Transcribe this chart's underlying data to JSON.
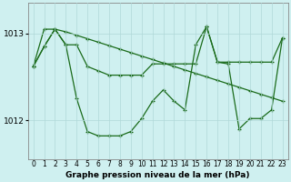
{
  "title": "Graphe pression niveau de la mer (hPa)",
  "background_color": "#cff0f0",
  "line_color": "#1a6b1a",
  "x_labels": [
    "0",
    "1",
    "2",
    "3",
    "4",
    "5",
    "6",
    "7",
    "8",
    "9",
    "10",
    "11",
    "12",
    "13",
    "14",
    "15",
    "16",
    "17",
    "18",
    "19",
    "20",
    "21",
    "22",
    "23"
  ],
  "y_ticks": [
    1012,
    1013
  ],
  "ylim": [
    1011.55,
    1013.35
  ],
  "xlim": [
    -0.5,
    23.5
  ],
  "series1_smooth": [
    1012.62,
    1013.05,
    1013.05,
    1013.02,
    1012.98,
    1012.94,
    1012.9,
    1012.86,
    1012.82,
    1012.78,
    1012.74,
    1012.7,
    1012.66,
    1012.62,
    1012.58,
    1012.54,
    1012.5,
    1012.46,
    1012.42,
    1012.38,
    1012.34,
    1012.3,
    1012.26,
    1012.22
  ],
  "series2_upper": [
    1012.62,
    1012.85,
    1013.05,
    1012.87,
    1012.87,
    1012.62,
    1012.57,
    1012.52,
    1012.52,
    1012.52,
    1012.52,
    1012.65,
    1012.65,
    1012.65,
    1012.65,
    1012.65,
    1013.08,
    1012.67,
    1012.67,
    1012.67,
    1012.67,
    1012.67,
    1012.67,
    1012.95
  ],
  "series3_jagged": [
    1012.62,
    1012.85,
    1013.05,
    1012.87,
    1012.25,
    1011.87,
    1011.82,
    1011.82,
    1011.82,
    1011.87,
    1012.02,
    1012.22,
    1012.35,
    1012.22,
    1012.12,
    1012.87,
    1013.08,
    1012.67,
    1012.65,
    1011.9,
    1012.02,
    1012.02,
    1012.12,
    1012.95
  ],
  "grid_color": "#b0d8d8",
  "spine_color": "#888888",
  "title_fontsize": 6.5,
  "tick_fontsize": 5.5,
  "ytick_fontsize": 6.5,
  "linewidth": 0.9,
  "markersize": 3.0,
  "marker": "+"
}
